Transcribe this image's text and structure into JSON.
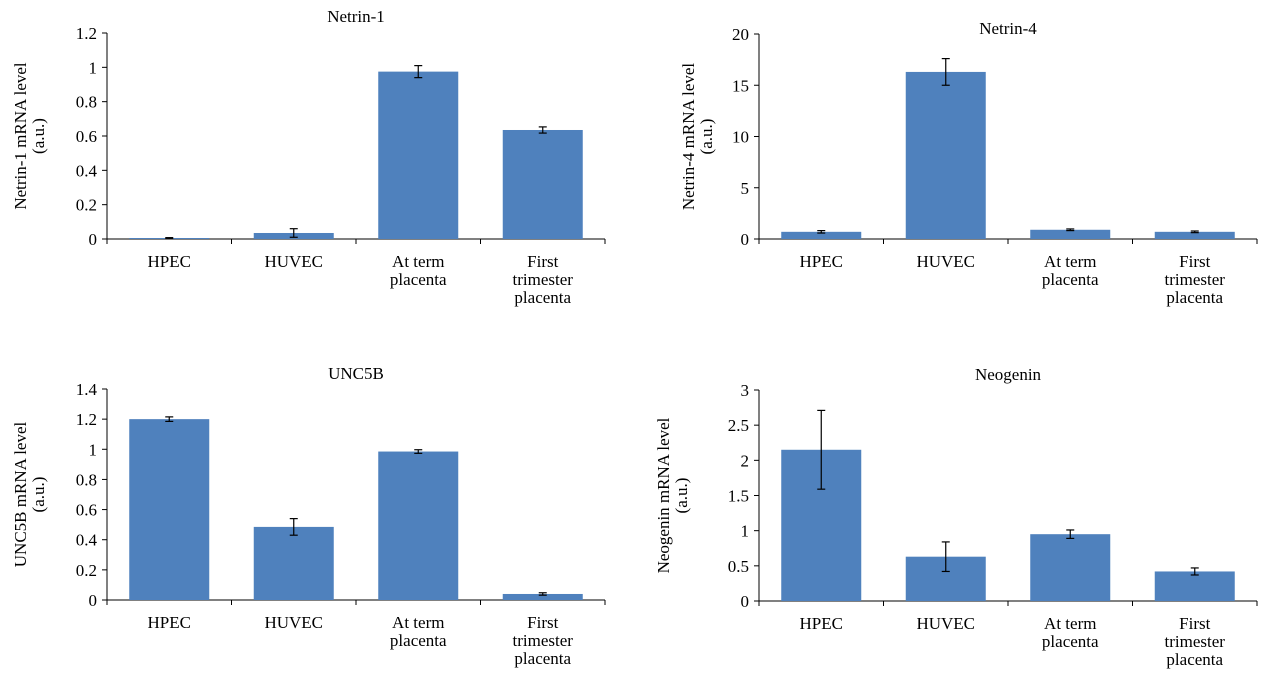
{
  "colors": {
    "bar": "#4f81bd",
    "axis": "#000000",
    "text": "#000000",
    "error": "#000000"
  },
  "chart_data": [
    {
      "type": "bar",
      "title": "Netrin-1",
      "ylabel": [
        "Netrin-1 mRNA level",
        "(a.u.)"
      ],
      "ylim": [
        0,
        1.2
      ],
      "yticks": [
        "0",
        "0.2",
        "0.4",
        "0.6",
        "0.8",
        "1",
        "1.2"
      ],
      "categories": [
        [
          "HPEC"
        ],
        [
          "HUVEC"
        ],
        [
          "At term",
          "placenta"
        ],
        [
          "First",
          "trimester",
          "placenta"
        ]
      ],
      "values": [
        0.005,
        0.035,
        0.975,
        0.635
      ],
      "errors": [
        0.003,
        0.025,
        0.035,
        0.018
      ]
    },
    {
      "type": "bar",
      "title": "Netrin-4",
      "ylabel": [
        "Netrin-4 mRNA level",
        "(a.u.)"
      ],
      "ylim": [
        0,
        20
      ],
      "yticks": [
        "0",
        "5",
        "10",
        "15",
        "20"
      ],
      "categories": [
        [
          "HPEC"
        ],
        [
          "HUVEC"
        ],
        [
          "At term",
          "placenta"
        ],
        [
          "First",
          "trimester",
          "placenta"
        ]
      ],
      "values": [
        0.7,
        16.3,
        0.9,
        0.7
      ],
      "errors": [
        0.12,
        1.3,
        0.08,
        0.08
      ]
    },
    {
      "type": "bar",
      "title": "UNC5B",
      "ylabel": [
        "UNC5B mRNA level",
        "(a.u.)"
      ],
      "ylim": [
        0,
        1.4
      ],
      "yticks": [
        "0",
        "0.2",
        "0.4",
        "0.6",
        "0.8",
        "1",
        "1.2",
        "1.4"
      ],
      "categories": [
        [
          "HPEC"
        ],
        [
          "HUVEC"
        ],
        [
          "At term",
          "placenta"
        ],
        [
          "First",
          "trimester",
          "placenta"
        ]
      ],
      "values": [
        1.2,
        0.485,
        0.985,
        0.04
      ],
      "errors": [
        0.015,
        0.055,
        0.012,
        0.008
      ]
    },
    {
      "type": "bar",
      "title": "Neogenin",
      "ylabel": [
        "Neogenin mRNA level",
        "(a.u.)"
      ],
      "ylim": [
        0,
        3
      ],
      "yticks": [
        "0",
        "0.5",
        "1",
        "1.5",
        "2",
        "2.5",
        "3"
      ],
      "categories": [
        [
          "HPEC"
        ],
        [
          "HUVEC"
        ],
        [
          "At term",
          "placenta"
        ],
        [
          "First",
          "trimester",
          "placenta"
        ]
      ],
      "values": [
        2.15,
        0.63,
        0.95,
        0.42
      ],
      "errors": [
        0.56,
        0.21,
        0.06,
        0.05
      ]
    }
  ]
}
